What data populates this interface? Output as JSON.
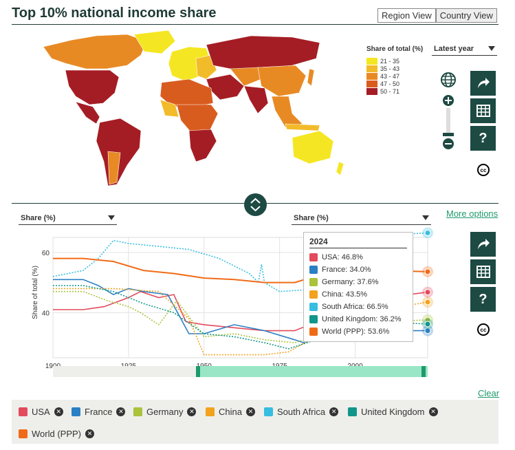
{
  "header": {
    "title": "Top 10% national income share"
  },
  "view_toggle": {
    "region": "Region View",
    "country": "Country View",
    "active": "country"
  },
  "map_legend": {
    "title": "Share of total (%)",
    "items": [
      {
        "label": "21 - 35",
        "color": "#f5e623"
      },
      {
        "label": "35 - 43",
        "color": "#f2bb2a"
      },
      {
        "label": "43 - 47",
        "color": "#e88a24"
      },
      {
        "label": "47 - 50",
        "color": "#d95c1f"
      },
      {
        "label": "50 - 71",
        "color": "#a51d24"
      }
    ]
  },
  "year_select": {
    "value": "Latest year"
  },
  "left_select": {
    "value": "Share (%)"
  },
  "right_select": {
    "value": "Share (%)"
  },
  "more_options": "More options",
  "clear": "Clear",
  "icons": {
    "globe": "globe-icon",
    "zoom_in": "plus-icon",
    "zoom_out": "minus-icon",
    "share": "share-icon",
    "table": "table-icon",
    "help": "help-icon",
    "cc": "cc-icon"
  },
  "tooltip": {
    "year": "2024",
    "rows": [
      {
        "text": "USA: 46.8%",
        "color": "#e34a5c"
      },
      {
        "text": "France: 34.0%",
        "color": "#2b7fc4"
      },
      {
        "text": "Germany: 37.6%",
        "color": "#aac23c"
      },
      {
        "text": "China: 43.5%",
        "color": "#f2a21f"
      },
      {
        "text": "South Africa: 66.5%",
        "color": "#37bde0"
      },
      {
        "text": "United Kingdom: 36.2%",
        "color": "#11968a"
      },
      {
        "text": "World (PPP): 53.6%",
        "color": "#f06b18"
      }
    ]
  },
  "chart_data": {
    "type": "line",
    "title": "",
    "xlabel": "",
    "ylabel": "Share of total (%)",
    "xlim": [
      1900,
      2024
    ],
    "ylim": [
      25,
      65
    ],
    "x_ticks": [
      "1900",
      "1925",
      "1950",
      "1975",
      "2000"
    ],
    "y_ticks": [
      "40",
      "60"
    ],
    "series": [
      {
        "name": "USA",
        "color": "#e34a5c",
        "x": [
          1900,
          1910,
          1917,
          1925,
          1929,
          1935,
          1940,
          1944,
          1950,
          1960,
          1970,
          1980,
          1990,
          2000,
          2010,
          2024
        ],
        "y": [
          41,
          41,
          42,
          45,
          47,
          45,
          46,
          37,
          36,
          35,
          34,
          34,
          38,
          41,
          45,
          46.8
        ]
      },
      {
        "name": "France",
        "color": "#2b7fc4",
        "x": [
          1900,
          1910,
          1915,
          1920,
          1925,
          1930,
          1938,
          1945,
          1950,
          1960,
          1970,
          1980,
          1983,
          1990,
          2000,
          2010,
          2024
        ],
        "y": [
          51,
          51,
          49,
          46,
          48,
          47,
          46,
          33,
          33,
          36,
          34,
          31,
          30,
          32,
          33,
          34,
          34.0
        ]
      },
      {
        "name": "Germany",
        "color": "#aac23c",
        "x": [
          1900,
          1910,
          1918,
          1925,
          1929,
          1935,
          1941,
          1950,
          1960,
          1970,
          1980,
          1990,
          2000,
          2010,
          2024
        ],
        "y": [
          47,
          47,
          44,
          42,
          40,
          36,
          44,
          32,
          33,
          31,
          30,
          33,
          35,
          37,
          37.6
        ]
      },
      {
        "name": "China",
        "color": "#f2a21f",
        "x": [
          1900,
          1920,
          1935,
          1945,
          1950,
          1960,
          1970,
          1978,
          1985,
          1995,
          2005,
          2015,
          2024
        ],
        "y": [
          48,
          48,
          47,
          38,
          26,
          26,
          26,
          27,
          31,
          36,
          41,
          42,
          43.5
        ]
      },
      {
        "name": "South Africa",
        "color": "#37bde0",
        "x": [
          1900,
          1910,
          1915,
          1920,
          1925,
          1935,
          1945,
          1955,
          1965,
          1968,
          1969,
          1970,
          1975,
          1990,
          2000,
          2010,
          2015,
          2024
        ],
        "y": [
          52,
          54,
          58,
          64,
          63,
          62,
          61,
          58,
          53,
          50,
          56,
          50,
          47,
          48,
          57,
          64,
          66,
          66.5
        ]
      },
      {
        "name": "United Kingdom",
        "color": "#11968a",
        "x": [
          1900,
          1910,
          1920,
          1930,
          1940,
          1950,
          1960,
          1970,
          1978,
          1990,
          2000,
          2010,
          2024
        ],
        "y": [
          49,
          49,
          47,
          43,
          40,
          33,
          32,
          30,
          28,
          32,
          36,
          37,
          36.2
        ]
      },
      {
        "name": "World (PPP)",
        "color": "#f06b18",
        "x": [
          1900,
          1910,
          1920,
          1930,
          1940,
          1950,
          1960,
          1970,
          1980,
          1990,
          2000,
          2010,
          2024
        ],
        "y": [
          58,
          58,
          57,
          54,
          53,
          51.5,
          51,
          50,
          50,
          53,
          55,
          54,
          53.6
        ]
      }
    ]
  },
  "chips": [
    {
      "label": "USA",
      "color": "#e34a5c"
    },
    {
      "label": "France",
      "color": "#2b7fc4"
    },
    {
      "label": "Germany",
      "color": "#aac23c"
    },
    {
      "label": "China",
      "color": "#f2a21f"
    },
    {
      "label": "South Africa",
      "color": "#37bde0"
    },
    {
      "label": "United Kingdom",
      "color": "#11968a"
    },
    {
      "label": "World (PPP)",
      "color": "#f06b18"
    }
  ]
}
